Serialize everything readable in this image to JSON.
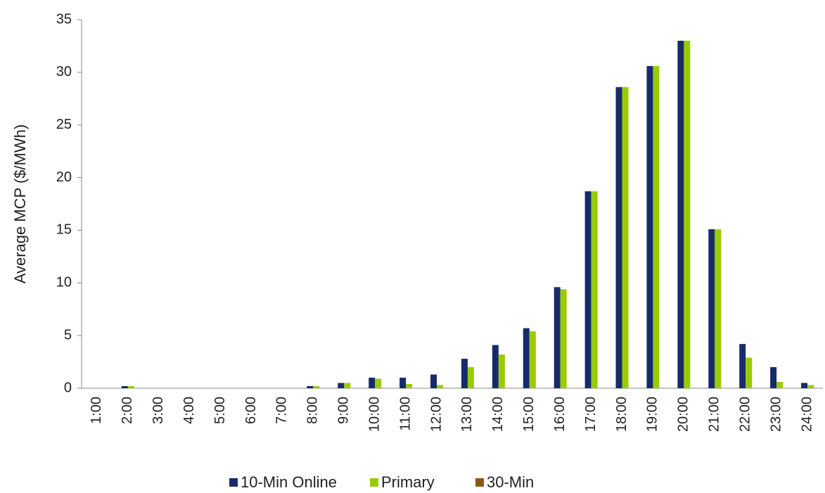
{
  "chart_data": {
    "type": "bar",
    "y_label": "Average MCP ($/MWh)",
    "categories": [
      "1:00",
      "2:00",
      "3:00",
      "4:00",
      "5:00",
      "6:00",
      "7:00",
      "8:00",
      "9:00",
      "10:00",
      "11:00",
      "12:00",
      "13:00",
      "14:00",
      "15:00",
      "16:00",
      "17:00",
      "18:00",
      "19:00",
      "20:00",
      "21:00",
      "22:00",
      "23:00",
      "24:00"
    ],
    "series": [
      {
        "name": "10-Min Online",
        "color": "#172b6b",
        "values": [
          0,
          0.2,
          0,
          0,
          0,
          0,
          0,
          0.2,
          0.5,
          1.0,
          1.0,
          1.3,
          2.8,
          4.1,
          5.7,
          9.6,
          18.7,
          28.6,
          30.6,
          33.0,
          15.1,
          4.2,
          2.0,
          0.5
        ]
      },
      {
        "name": "Primary",
        "color": "#99cc00",
        "values": [
          0,
          0.2,
          0,
          0,
          0,
          0,
          0,
          0.2,
          0.5,
          0.9,
          0.4,
          0.3,
          2.0,
          3.2,
          5.4,
          9.4,
          18.7,
          28.6,
          30.6,
          33.0,
          15.1,
          2.9,
          0.6,
          0.3
        ]
      },
      {
        "name": "30-Min",
        "color": "#8b5a10",
        "values": [
          0,
          0,
          0,
          0,
          0,
          0,
          0,
          0,
          0,
          0,
          0,
          0,
          0,
          0,
          0,
          0,
          0,
          0,
          0,
          0,
          0,
          0,
          0,
          0
        ]
      }
    ],
    "ylim": [
      0,
      35
    ],
    "yticks": [
      0,
      5,
      10,
      15,
      20,
      25,
      30,
      35
    ],
    "grid": false,
    "legend": "bottom"
  }
}
